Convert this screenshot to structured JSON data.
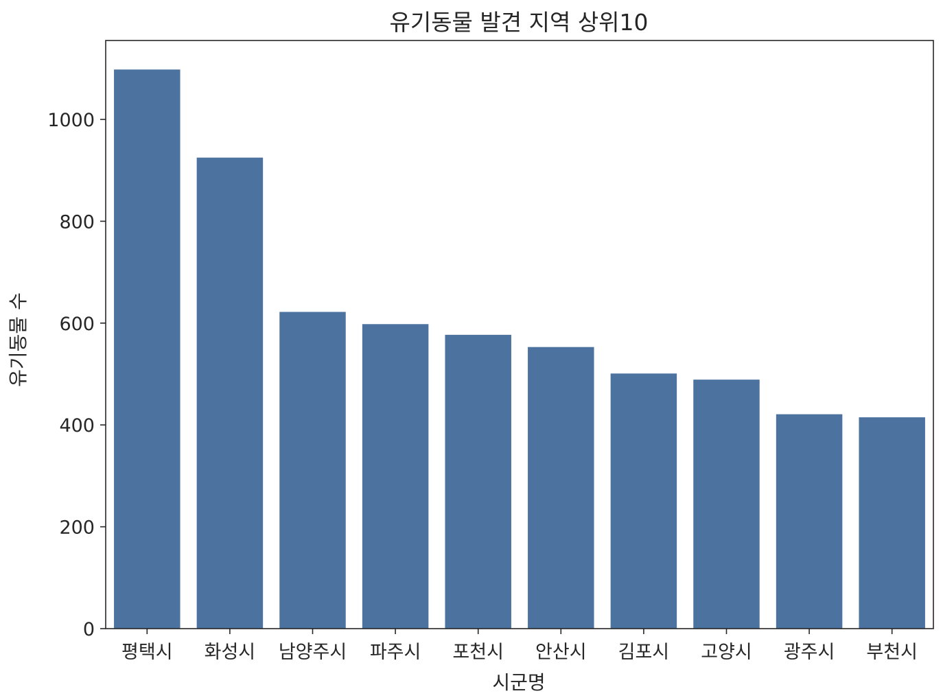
{
  "chart_data": {
    "type": "bar",
    "title": "유기동물 발견 지역 상위10",
    "xlabel": "시군명",
    "ylabel": "유기동물 수",
    "categories": [
      "평택시",
      "화성시",
      "남양주시",
      "파주시",
      "포천시",
      "안산시",
      "김포시",
      "고양시",
      "광주시",
      "부천시"
    ],
    "values": [
      1098,
      925,
      622,
      598,
      577,
      553,
      501,
      489,
      421,
      415
    ],
    "ylim": [
      0,
      1155
    ],
    "yticks": [
      0,
      200,
      400,
      600,
      800,
      1000
    ],
    "ytick_labels": [
      "0",
      "200",
      "400",
      "600",
      "800",
      "1000"
    ],
    "bar_color": "#4c72a0",
    "grid": false,
    "legend": "none"
  }
}
